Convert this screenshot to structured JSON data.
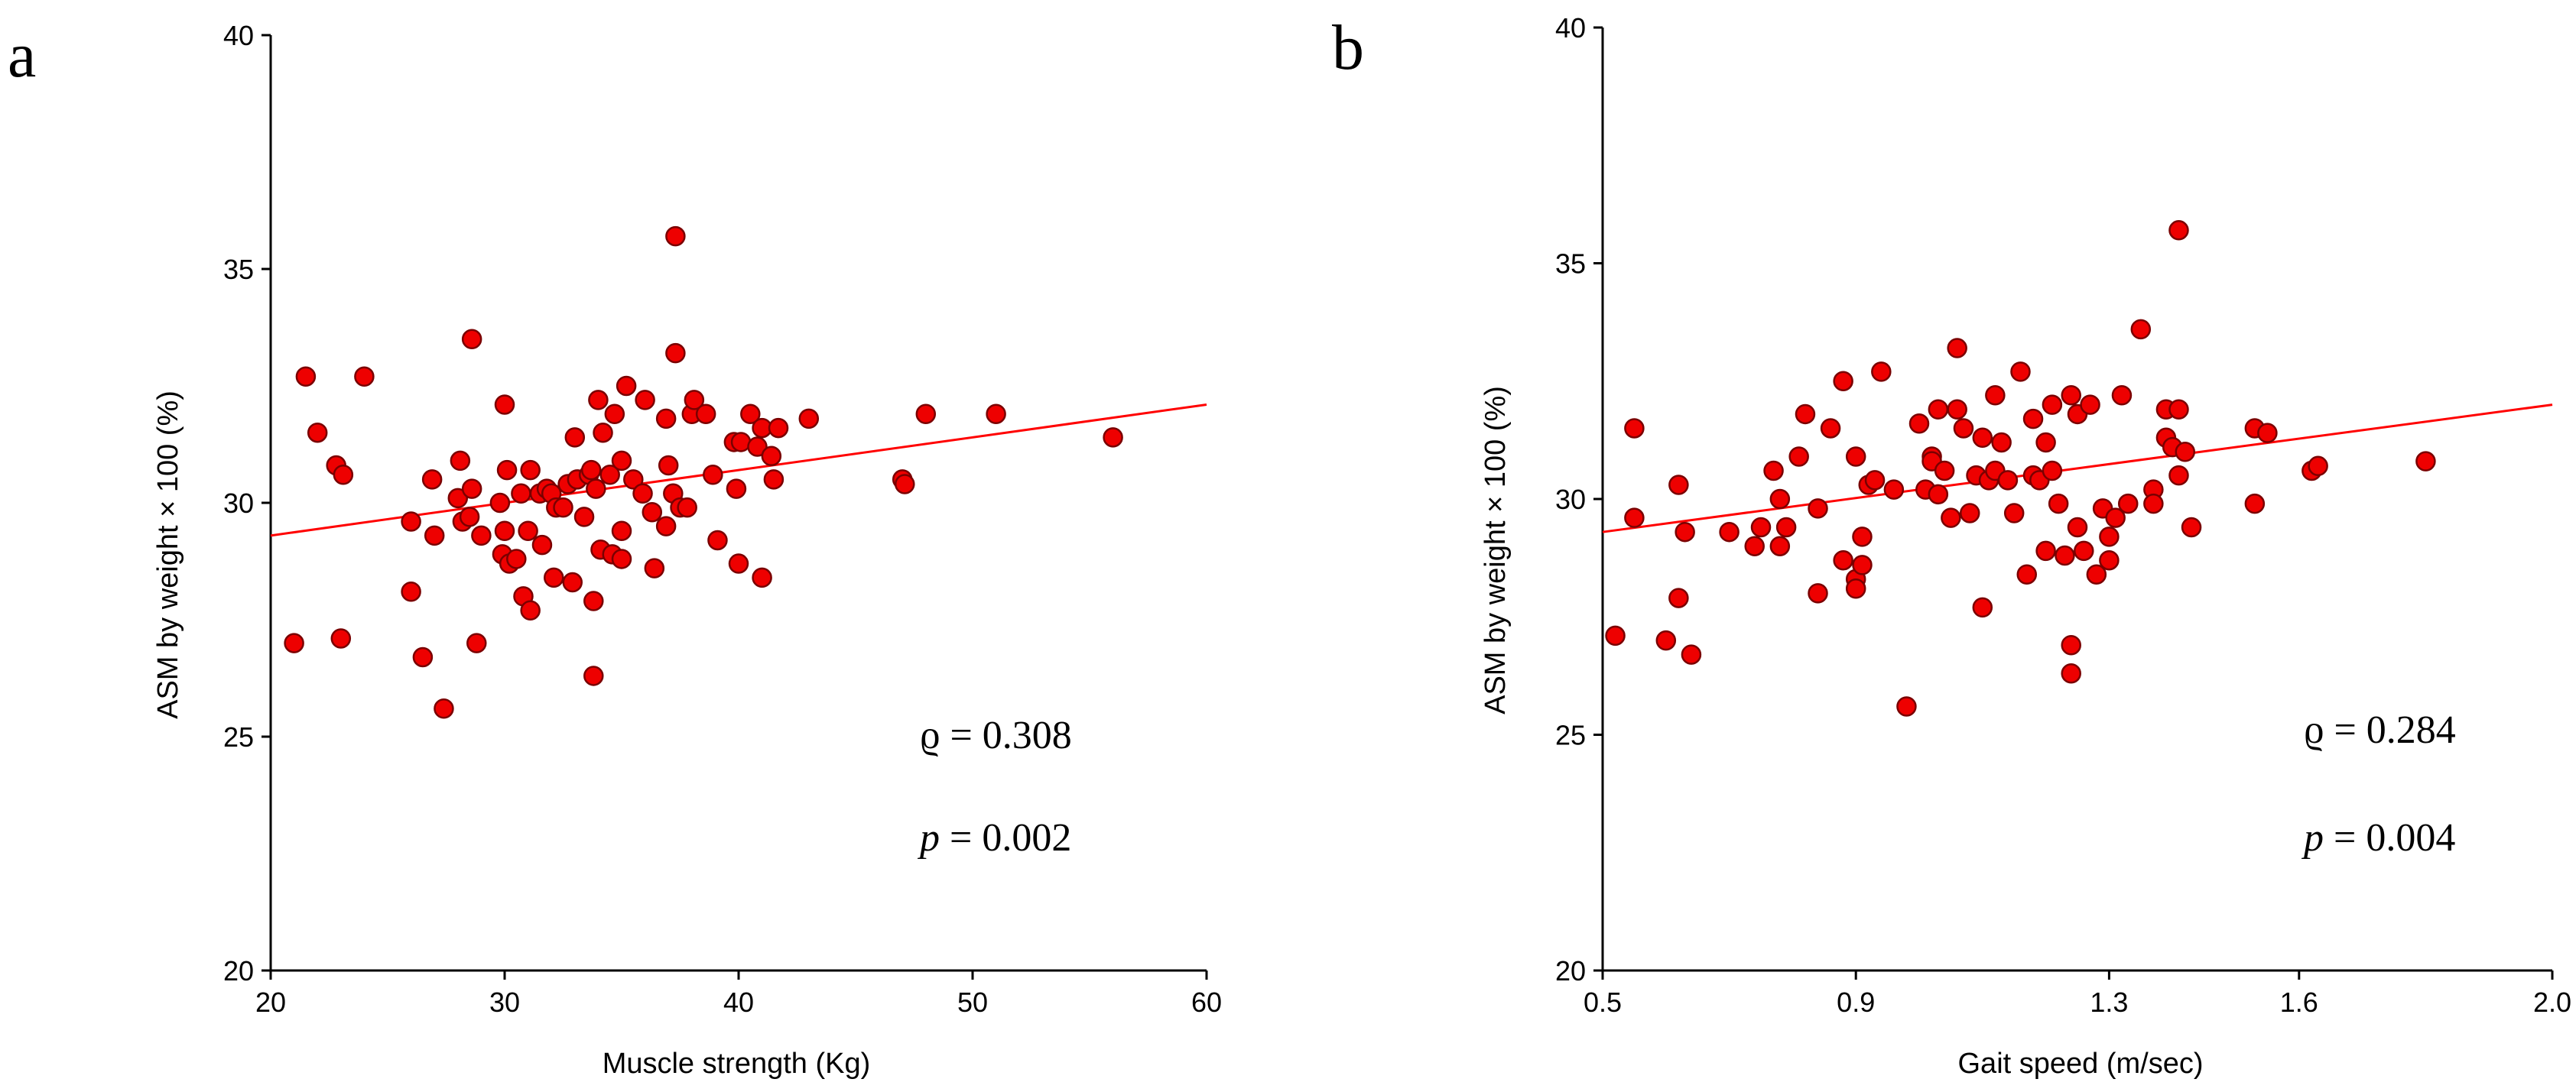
{
  "colors": {
    "points": "#ee0000",
    "point_edge": "#7a0000",
    "fit_line": "#ff0000",
    "axes": "#000000"
  },
  "chart_data": [
    {
      "type": "scatter",
      "panel_label": "a",
      "title": "",
      "xlabel": "Muscle strength (Kg)",
      "ylabel": "ASM by weight × 100 (%)",
      "xlim": [
        20,
        60
      ],
      "ylim": [
        20,
        40
      ],
      "xticks": [
        20,
        30,
        40,
        50,
        60
      ],
      "xtick_labels": [
        "20",
        "30",
        "40",
        "50",
        "60"
      ],
      "yticks": [
        20,
        25,
        30,
        35,
        40
      ],
      "ytick_labels": [
        "20",
        "25",
        "30",
        "35",
        "40"
      ],
      "grid": false,
      "fit_line": {
        "x": [
          20,
          60
        ],
        "y": [
          29.3,
          32.1
        ]
      },
      "annotations": {
        "rho_symbol": "ϱ",
        "rho_text": " = 0.308",
        "p_symbol": "p",
        "p_text": " = 0.002"
      },
      "points": [
        [
          21.0,
          27.0
        ],
        [
          21.5,
          32.7
        ],
        [
          22.0,
          31.5
        ],
        [
          22.8,
          30.8
        ],
        [
          23.1,
          30.6
        ],
        [
          23.0,
          27.1
        ],
        [
          24.0,
          32.7
        ],
        [
          26.0,
          29.6
        ],
        [
          26.0,
          28.1
        ],
        [
          26.5,
          26.7
        ],
        [
          26.9,
          30.5
        ],
        [
          27.0,
          29.3
        ],
        [
          27.4,
          25.6
        ],
        [
          28.0,
          30.1
        ],
        [
          28.1,
          30.9
        ],
        [
          28.2,
          29.6
        ],
        [
          28.5,
          29.7
        ],
        [
          28.6,
          30.3
        ],
        [
          28.6,
          33.5
        ],
        [
          28.8,
          27.0
        ],
        [
          29.0,
          29.3
        ],
        [
          29.8,
          30.0
        ],
        [
          29.9,
          28.9
        ],
        [
          30.0,
          32.1
        ],
        [
          30.0,
          29.4
        ],
        [
          30.1,
          30.7
        ],
        [
          30.2,
          28.7
        ],
        [
          30.5,
          28.8
        ],
        [
          30.7,
          30.2
        ],
        [
          30.8,
          28.0
        ],
        [
          31.0,
          29.4
        ],
        [
          31.1,
          30.7
        ],
        [
          31.1,
          27.7
        ],
        [
          31.5,
          30.2
        ],
        [
          31.6,
          29.1
        ],
        [
          31.8,
          30.3
        ],
        [
          32.0,
          30.2
        ],
        [
          32.1,
          28.4
        ],
        [
          32.2,
          29.9
        ],
        [
          32.5,
          29.9
        ],
        [
          32.7,
          30.4
        ],
        [
          32.9,
          28.3
        ],
        [
          33.0,
          31.4
        ],
        [
          33.1,
          30.5
        ],
        [
          33.4,
          29.7
        ],
        [
          33.6,
          30.6
        ],
        [
          33.7,
          30.7
        ],
        [
          33.8,
          26.3
        ],
        [
          33.8,
          27.9
        ],
        [
          33.9,
          30.3
        ],
        [
          34.0,
          32.2
        ],
        [
          34.1,
          29.0
        ],
        [
          34.2,
          31.5
        ],
        [
          34.5,
          30.6
        ],
        [
          34.6,
          28.9
        ],
        [
          34.7,
          31.9
        ],
        [
          35.0,
          30.9
        ],
        [
          35.0,
          29.4
        ],
        [
          35.0,
          28.8
        ],
        [
          35.2,
          32.5
        ],
        [
          35.5,
          30.5
        ],
        [
          35.9,
          30.2
        ],
        [
          36.0,
          32.2
        ],
        [
          36.3,
          29.8
        ],
        [
          36.4,
          28.6
        ],
        [
          36.9,
          31.8
        ],
        [
          36.9,
          29.5
        ],
        [
          37.0,
          30.8
        ],
        [
          37.2,
          30.2
        ],
        [
          37.3,
          33.2
        ],
        [
          37.3,
          35.7
        ],
        [
          37.5,
          29.9
        ],
        [
          37.8,
          29.9
        ],
        [
          38.0,
          31.9
        ],
        [
          38.1,
          32.2
        ],
        [
          38.6,
          31.9
        ],
        [
          38.9,
          30.6
        ],
        [
          39.1,
          29.2
        ],
        [
          39.8,
          31.3
        ],
        [
          39.9,
          30.3
        ],
        [
          40.0,
          28.7
        ],
        [
          40.1,
          31.3
        ],
        [
          40.5,
          31.9
        ],
        [
          40.8,
          31.2
        ],
        [
          41.0,
          31.6
        ],
        [
          41.0,
          28.4
        ],
        [
          41.4,
          31.0
        ],
        [
          41.5,
          30.5
        ],
        [
          41.7,
          31.6
        ],
        [
          43.0,
          31.8
        ],
        [
          47.0,
          30.5
        ],
        [
          47.1,
          30.4
        ],
        [
          48.0,
          31.9
        ],
        [
          51.0,
          31.9
        ],
        [
          56.0,
          31.4
        ]
      ]
    },
    {
      "type": "scatter",
      "panel_label": "b",
      "title": "",
      "xlabel": "Gait speed (m/sec)",
      "ylabel": "ASM by weight × 100 (%)",
      "xlim": [
        0.5,
        2.0
      ],
      "ylim": [
        20,
        40
      ],
      "xticks": [
        0.5,
        0.9,
        1.3,
        1.6,
        2.0
      ],
      "xtick_labels": [
        "0.5",
        "0.9",
        "1.3",
        "1.6",
        "2.0"
      ],
      "yticks": [
        20,
        25,
        30,
        35,
        40
      ],
      "ytick_labels": [
        "20",
        "25",
        "30",
        "35",
        "40"
      ],
      "grid": false,
      "fit_line": {
        "x": [
          0.5,
          2.0
        ],
        "y": [
          29.3,
          32.0
        ]
      },
      "annotations": {
        "rho_symbol": "ϱ",
        "rho_text": " = 0.284",
        "p_symbol": "p",
        "p_text": " = 0.004"
      },
      "points": [
        [
          0.52,
          27.1
        ],
        [
          0.55,
          31.5
        ],
        [
          0.55,
          29.6
        ],
        [
          0.6,
          27.0
        ],
        [
          0.62,
          30.3
        ],
        [
          0.62,
          27.9
        ],
        [
          0.63,
          29.3
        ],
        [
          0.64,
          26.7
        ],
        [
          0.7,
          29.3
        ],
        [
          0.74,
          29.0
        ],
        [
          0.75,
          29.4
        ],
        [
          0.77,
          30.6
        ],
        [
          0.78,
          30.0
        ],
        [
          0.78,
          29.0
        ],
        [
          0.79,
          29.4
        ],
        [
          0.81,
          30.9
        ],
        [
          0.82,
          31.8
        ],
        [
          0.84,
          29.8
        ],
        [
          0.84,
          28.0
        ],
        [
          0.86,
          31.5
        ],
        [
          0.88,
          32.5
        ],
        [
          0.88,
          28.7
        ],
        [
          0.9,
          30.9
        ],
        [
          0.9,
          28.3
        ],
        [
          0.9,
          28.1
        ],
        [
          0.91,
          29.2
        ],
        [
          0.91,
          28.6
        ],
        [
          0.92,
          30.3
        ],
        [
          0.93,
          30.4
        ],
        [
          0.94,
          32.7
        ],
        [
          0.96,
          30.2
        ],
        [
          0.98,
          25.6
        ],
        [
          1.0,
          31.6
        ],
        [
          1.01,
          30.2
        ],
        [
          1.02,
          30.9
        ],
        [
          1.02,
          30.8
        ],
        [
          1.03,
          31.9
        ],
        [
          1.03,
          30.1
        ],
        [
          1.04,
          30.6
        ],
        [
          1.05,
          29.6
        ],
        [
          1.06,
          31.9
        ],
        [
          1.06,
          33.2
        ],
        [
          1.07,
          31.5
        ],
        [
          1.08,
          29.7
        ],
        [
          1.09,
          30.5
        ],
        [
          1.1,
          27.7
        ],
        [
          1.1,
          31.3
        ],
        [
          1.11,
          30.4
        ],
        [
          1.12,
          32.2
        ],
        [
          1.12,
          30.6
        ],
        [
          1.13,
          31.2
        ],
        [
          1.14,
          30.4
        ],
        [
          1.15,
          29.7
        ],
        [
          1.16,
          32.7
        ],
        [
          1.17,
          28.4
        ],
        [
          1.18,
          31.7
        ],
        [
          1.18,
          30.5
        ],
        [
          1.19,
          30.4
        ],
        [
          1.2,
          31.2
        ],
        [
          1.2,
          28.9
        ],
        [
          1.21,
          32.0
        ],
        [
          1.21,
          30.6
        ],
        [
          1.22,
          29.9
        ],
        [
          1.23,
          28.8
        ],
        [
          1.24,
          32.2
        ],
        [
          1.24,
          26.9
        ],
        [
          1.24,
          26.3
        ],
        [
          1.25,
          29.4
        ],
        [
          1.25,
          31.8
        ],
        [
          1.26,
          28.9
        ],
        [
          1.27,
          32.0
        ],
        [
          1.28,
          28.4
        ],
        [
          1.29,
          29.8
        ],
        [
          1.3,
          28.7
        ],
        [
          1.3,
          29.2
        ],
        [
          1.31,
          29.6
        ],
        [
          1.32,
          32.2
        ],
        [
          1.33,
          29.9
        ],
        [
          1.35,
          33.6
        ],
        [
          1.37,
          30.2
        ],
        [
          1.37,
          29.9
        ],
        [
          1.39,
          31.3
        ],
        [
          1.39,
          31.9
        ],
        [
          1.4,
          31.1
        ],
        [
          1.41,
          31.9
        ],
        [
          1.41,
          30.5
        ],
        [
          1.41,
          35.7
        ],
        [
          1.42,
          31.0
        ],
        [
          1.43,
          29.4
        ],
        [
          1.53,
          31.5
        ],
        [
          1.53,
          29.9
        ],
        [
          1.55,
          31.4
        ],
        [
          1.62,
          30.6
        ],
        [
          1.63,
          30.7
        ],
        [
          1.8,
          30.8
        ]
      ]
    }
  ]
}
